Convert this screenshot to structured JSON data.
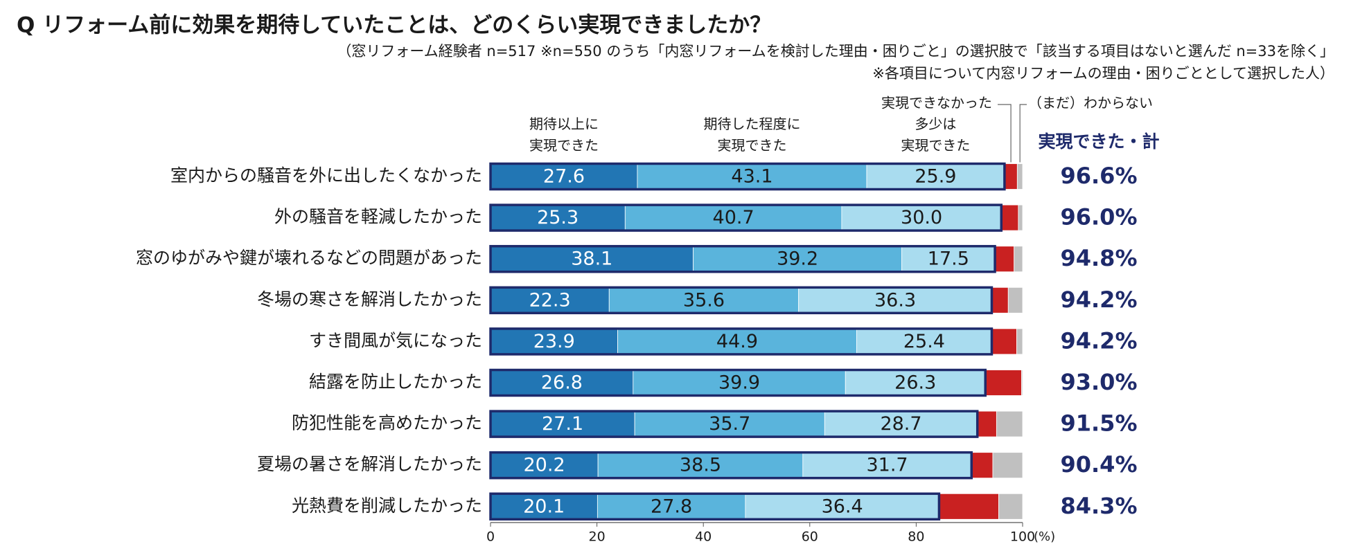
{
  "chart_data": {
    "type": "stacked-bar-horizontal",
    "title": "Q リフォーム前に効果を期待していたことは、どのくらい実現できましたか？",
    "subtitle": [
      "（窓リフォーム経験者 n=517 ※n=550 のうち「内窓リフォームを検討した理由・困りごと」の選択肢で「該当する項目はないと選んだ n=33を除く」",
      "※各項目について内窓リフォームの理由・困りごととして選択した人）"
    ],
    "categories": [
      "室内からの騒音を外に出したくなかった",
      "外の騒音を軽減したかった",
      "窓のゆがみや鍵が壊れるなどの問題があった",
      "冬場の寒さを解消したかった",
      "すき間風が気になった",
      "結露を防止したかった",
      "防犯性能を高めたかった",
      "夏場の暑さを解消したかった",
      "光熱費を削減したかった"
    ],
    "series": [
      {
        "name": "期待以上に\n実現できた",
        "color": "#2276b4",
        "label_color": "#ffffff",
        "values": [
          27.6,
          25.3,
          38.1,
          22.3,
          23.9,
          26.8,
          27.1,
          20.2,
          20.1
        ]
      },
      {
        "name": "期待した程度に\n実現できた",
        "color": "#5ab4dc",
        "label_color": "#1a1a1a",
        "values": [
          43.1,
          40.7,
          39.2,
          35.6,
          44.9,
          39.9,
          35.7,
          38.5,
          27.8
        ],
        "value_labels": [
          "43.1",
          "40.7",
          "39.2",
          "35.6",
          "44.9",
          "39.9",
          "35.7",
          "38.5",
          "27.8"
        ]
      },
      {
        "name": "多少は\n実現できた",
        "color": "#a9dcef",
        "label_color": "#1a1a1a",
        "values": [
          25.9,
          30.0,
          17.5,
          36.3,
          25.4,
          26.3,
          28.7,
          31.7,
          36.4
        ],
        "value_labels": [
          "25.9",
          "30.0",
          "17.5",
          "36.3",
          "25.4",
          "26.3",
          "28.7",
          "31.7",
          "36.4"
        ]
      },
      {
        "name": "実現できなかった",
        "color": "#c92121",
        "values": [
          2.4,
          3.2,
          3.6,
          3.1,
          4.7,
          6.8,
          3.6,
          4.0,
          11.2
        ]
      },
      {
        "name": "（まだ）わからない",
        "color": "#c0c0c0",
        "values": [
          1.0,
          0.8,
          1.6,
          2.7,
          1.1,
          0.2,
          4.9,
          5.6,
          4.5
        ]
      }
    ],
    "totals": {
      "name": "実現できた・計",
      "values": [
        96.6,
        96.0,
        94.8,
        94.2,
        94.2,
        93.0,
        91.5,
        90.4,
        84.3
      ],
      "value_labels": [
        "96.6%",
        "96.0%",
        "94.8%",
        "94.2%",
        "94.2%",
        "93.0%",
        "91.5%",
        "90.4%",
        "84.3%"
      ]
    },
    "xlim": [
      0,
      100
    ],
    "xticks": [
      0,
      20,
      40,
      60,
      80,
      100
    ],
    "x_unit": "(%)"
  }
}
